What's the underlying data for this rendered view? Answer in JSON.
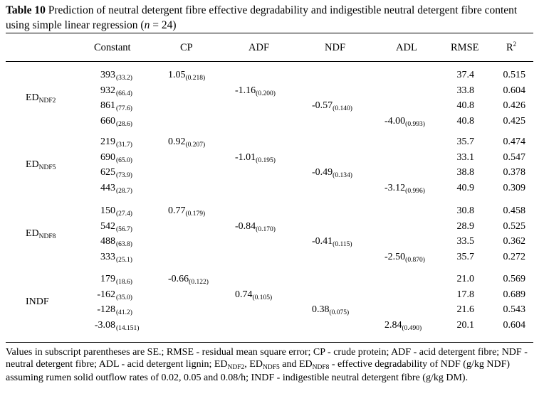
{
  "caption": {
    "label": "Table 10",
    "text_1": " Prediction of neutral detergent fibre effective degradability and indigestible neutral detergent fibre content using simple linear regression (",
    "n_italic": "n",
    "text_2": " = 24)"
  },
  "headers": {
    "constant": "Constant",
    "cp": "CP",
    "adf": "ADF",
    "ndf": "NDF",
    "adl": "ADL",
    "rmse": "RMSE",
    "r2_base": "R",
    "r2_sup": "2"
  },
  "groups": [
    {
      "label_base": "ED",
      "label_sub": "NDF2",
      "rows": [
        {
          "constant": "393",
          "constant_se": "(33.2)",
          "cp": "1.05",
          "cp_se": "(0.218)",
          "rmse": "37.4",
          "r2": "0.515"
        },
        {
          "constant": "932",
          "constant_se": "(66.4)",
          "adf": "-1.16",
          "adf_se": "(0.200)",
          "rmse": "33.8",
          "r2": "0.604"
        },
        {
          "constant": "861",
          "constant_se": "(77.6)",
          "ndf": "-0.57",
          "ndf_se": "(0.140)",
          "rmse": "40.8",
          "r2": "0.426"
        },
        {
          "constant": "660",
          "constant_se": "(28.6)",
          "adl": "-4.00",
          "adl_se": "(0.993)",
          "rmse": "40.8",
          "r2": "0.425"
        }
      ]
    },
    {
      "label_base": "ED",
      "label_sub": "NDF5",
      "rows": [
        {
          "constant": "219",
          "constant_se": "(31.7)",
          "cp": "0.92",
          "cp_se": "(0.207)",
          "rmse": "35.7",
          "r2": "0.474"
        },
        {
          "constant": "690",
          "constant_se": "(65.0)",
          "adf": "-1.01",
          "adf_se": "(0.195)",
          "rmse": "33.1",
          "r2": "0.547"
        },
        {
          "constant": "625",
          "constant_se": "(73.9)",
          "ndf": "-0.49",
          "ndf_se": "(0.134)",
          "rmse": "38.8",
          "r2": "0.378"
        },
        {
          "constant": "443",
          "constant_se": "(28.7)",
          "adl": "-3.12",
          "adl_se": "(0.996)",
          "rmse": "40.9",
          "r2": "0.309"
        }
      ]
    },
    {
      "label_base": "ED",
      "label_sub": "NDF8",
      "rows": [
        {
          "constant": "150",
          "constant_se": "(27.4)",
          "cp": "0.77",
          "cp_se": "(0.179)",
          "rmse": "30.8",
          "r2": "0.458"
        },
        {
          "constant": "542",
          "constant_se": "(56.7)",
          "adf": "-0.84",
          "adf_se": "(0.170)",
          "rmse": "28.9",
          "r2": "0.525"
        },
        {
          "constant": "488",
          "constant_se": "(63.8)",
          "ndf": "-0.41",
          "ndf_se": "(0.115)",
          "rmse": "33.5",
          "r2": "0.362"
        },
        {
          "constant": "333",
          "constant_se": "(25.1)",
          "adl": "-2.50",
          "adl_se": "(0.870)",
          "rmse": "35.7",
          "r2": "0.272"
        }
      ]
    },
    {
      "label_base": "INDF",
      "label_sub": "",
      "rows": [
        {
          "constant": "179",
          "constant_se": "(18.6)",
          "cp": "-0.66",
          "cp_se": "(0.122)",
          "rmse": "21.0",
          "r2": "0.569"
        },
        {
          "constant": "-162",
          "constant_se": "(35.0)",
          "adf": "0.74",
          "adf_se": "(0.105)",
          "rmse": "17.8",
          "r2": "0.689"
        },
        {
          "constant": "-128",
          "constant_se": "(41.2)",
          "ndf": "0.38",
          "ndf_se": "(0.075)",
          "rmse": "21.6",
          "r2": "0.543"
        },
        {
          "constant": "-3.08",
          "constant_se": "(14.151)",
          "adl": "2.84",
          "adl_se": "(0.490)",
          "rmse": "20.1",
          "r2": "0.604"
        }
      ]
    }
  ],
  "notes": {
    "part_1": "Values in subscript parentheses are SE.; RMSE - residual mean square error; CP - crude protein; ADF - acid detergent fibre; NDF - neutral detergent fibre; ADL - acid detergent lignin; ED",
    "sub_1": "NDF2",
    "part_2": ", ED",
    "sub_2": "NDF5",
    "part_3": " and ED",
    "sub_3": "NDF8",
    "part_4": " - effective degradability of NDF (g/kg NDF) assuming rumen solid outflow rates of 0.02, 0.05 and 0.08/h; INDF - indigestible neutral detergent fibre (g/kg DM)."
  }
}
